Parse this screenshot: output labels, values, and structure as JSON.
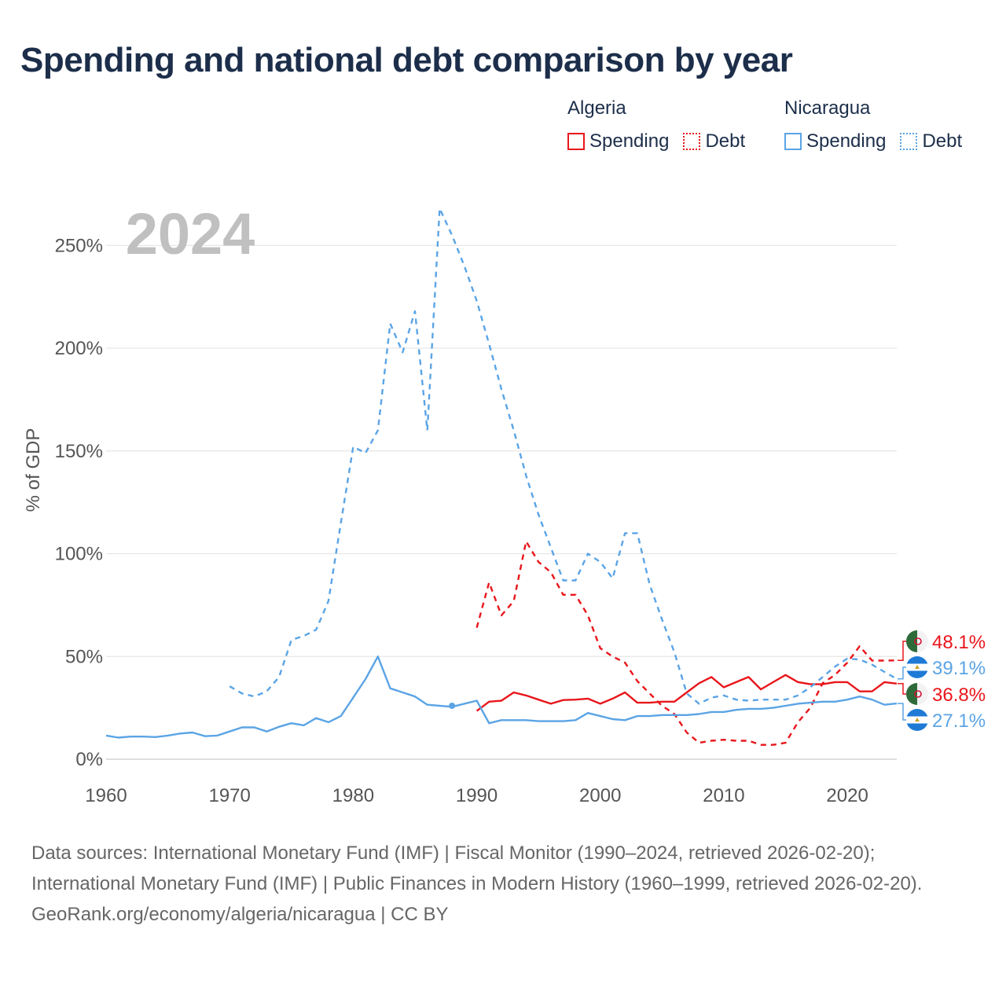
{
  "title": "Spending and national debt comparison by year",
  "legend": {
    "groups": [
      {
        "country": "Algeria",
        "color": "#e8161b",
        "spending_label": "Spending",
        "debt_label": "Debt"
      },
      {
        "country": "Nicaragua",
        "color": "#5ba4e5",
        "spending_label": "Spending",
        "debt_label": "Debt"
      }
    ]
  },
  "footer": {
    "sources": "Data sources: International Monetary Fund (IMF) | Fiscal Monitor (1990–2024, retrieved 2026-02-20); International Monetary Fund (IMF) | Public Finances in Modern History (1960–1999, retrieved 2026-02-20).",
    "credit": "GeoRank.org/economy/algeria/nicaragua | CC BY"
  },
  "chart_data": {
    "type": "line",
    "year_label": "2024",
    "ylabel": "% of GDP",
    "xlim": [
      1960,
      2024
    ],
    "ylim": [
      0,
      270
    ],
    "xticks": [
      1960,
      1970,
      1980,
      1990,
      2000,
      2010,
      2020
    ],
    "yticks": [
      0,
      50,
      100,
      150,
      200,
      250
    ],
    "ytick_labels": [
      "0%",
      "50%",
      "100%",
      "150%",
      "200%",
      "250%"
    ],
    "series": [
      {
        "name": "Algeria Spending",
        "country": "Algeria",
        "measure": "Spending",
        "color": "#e8161b",
        "dash": false,
        "x": [
          1990,
          1991,
          1992,
          1993,
          1994,
          1995,
          1996,
          1997,
          1998,
          1999,
          2000,
          2001,
          2002,
          2003,
          2004,
          2005,
          2006,
          2007,
          2008,
          2009,
          2010,
          2011,
          2012,
          2013,
          2014,
          2015,
          2016,
          2017,
          2018,
          2019,
          2020,
          2021,
          2022,
          2023,
          2024
        ],
        "y": [
          23.5,
          28,
          28.5,
          32.5,
          31,
          29,
          27,
          28.8,
          29,
          29.5,
          27,
          29.5,
          32.5,
          27.5,
          27.5,
          28,
          28,
          32.5,
          37,
          40,
          35,
          37.5,
          40,
          34,
          37.5,
          41,
          37.5,
          36.5,
          36.5,
          37.5,
          37.5,
          33,
          33,
          37.5,
          36.8
        ],
        "end_label": "36.8%"
      },
      {
        "name": "Algeria Debt",
        "country": "Algeria",
        "measure": "Debt",
        "color": "#e8161b",
        "dash": true,
        "x": [
          1990,
          1991,
          1992,
          1993,
          1994,
          1995,
          1996,
          1997,
          1998,
          1999,
          2000,
          2001,
          2002,
          2003,
          2004,
          2005,
          2006,
          2007,
          2008,
          2009,
          2010,
          2011,
          2012,
          2013,
          2014,
          2015,
          2016,
          2017,
          2018,
          2019,
          2020,
          2021,
          2022,
          2023,
          2024
        ],
        "y": [
          64,
          86,
          70,
          77,
          106,
          96,
          91,
          80,
          80,
          70,
          54,
          50,
          47,
          38,
          32,
          26,
          22,
          13,
          8,
          9,
          9.5,
          9,
          9,
          7,
          7,
          8,
          18,
          25,
          37,
          41,
          47,
          55,
          48,
          48,
          48.1
        ],
        "end_label": "48.1%"
      },
      {
        "name": "Nicaragua Spending",
        "country": "Nicaragua",
        "measure": "Spending",
        "color": "#5ba4e5",
        "dash": false,
        "x": [
          1960,
          1961,
          1962,
          1963,
          1964,
          1965,
          1966,
          1967,
          1968,
          1969,
          1970,
          1971,
          1972,
          1973,
          1974,
          1975,
          1976,
          1977,
          1978,
          1979,
          1980,
          1981,
          1982,
          1983,
          1984,
          1985,
          1986,
          1987,
          1988,
          1989,
          1990,
          1991,
          1992,
          1993,
          1994,
          1995,
          1996,
          1997,
          1998,
          1999,
          2000,
          2001,
          2002,
          2003,
          2004,
          2005,
          2006,
          2007,
          2008,
          2009,
          2010,
          2011,
          2012,
          2013,
          2014,
          2015,
          2016,
          2017,
          2018,
          2019,
          2020,
          2021,
          2022,
          2023,
          2024
        ],
        "y": [
          11.5,
          10.5,
          11,
          11,
          10.8,
          11.5,
          12.5,
          13,
          11.2,
          11.5,
          13.5,
          15.5,
          15.5,
          13.5,
          15.8,
          17.5,
          16.5,
          20,
          18,
          21,
          30,
          39,
          50,
          34.5,
          32.5,
          30.5,
          26.5,
          26,
          25.5,
          27,
          28.5,
          17.5,
          19,
          19,
          19,
          18.5,
          18.5,
          18.5,
          19,
          22.5,
          21,
          19.5,
          19,
          21,
          21,
          21.5,
          21.5,
          21.5,
          22,
          23,
          23,
          24,
          24.5,
          24.5,
          25,
          26,
          27,
          27.5,
          28,
          28,
          29,
          30.5,
          29,
          26.5,
          27.1
        ],
        "end_label": "27.1%"
      },
      {
        "name": "Nicaragua Debt",
        "country": "Nicaragua",
        "measure": "Debt",
        "color": "#5ba4e5",
        "dash": true,
        "x": [
          1970,
          1971,
          1972,
          1973,
          1974,
          1975,
          1976,
          1977,
          1978,
          1979,
          1980,
          1981,
          1982,
          1983,
          1984,
          1985,
          1986,
          1987,
          1988,
          1989,
          1990,
          1991,
          1992,
          1993,
          1994,
          1995,
          1996,
          1997,
          1998,
          1999,
          2000,
          2001,
          2002,
          2003,
          2004,
          2005,
          2006,
          2007,
          2008,
          2009,
          2010,
          2011,
          2012,
          2013,
          2014,
          2015,
          2016,
          2017,
          2018,
          2019,
          2020,
          2021,
          2022,
          2023,
          2024
        ],
        "y": [
          35.5,
          32,
          30.5,
          33,
          40,
          58,
          60,
          63,
          77,
          115,
          152,
          149,
          160,
          212,
          198,
          218,
          160,
          268,
          255,
          240,
          223,
          202,
          180,
          160,
          138,
          119,
          103,
          87,
          87,
          100,
          96,
          88,
          110,
          110,
          85,
          68,
          52,
          32,
          27,
          30,
          31,
          29,
          28.5,
          29,
          29,
          29,
          31,
          35,
          40,
          45,
          49,
          48.5,
          46,
          42.5,
          39.1
        ],
        "end_label": "39.1%"
      }
    ]
  }
}
